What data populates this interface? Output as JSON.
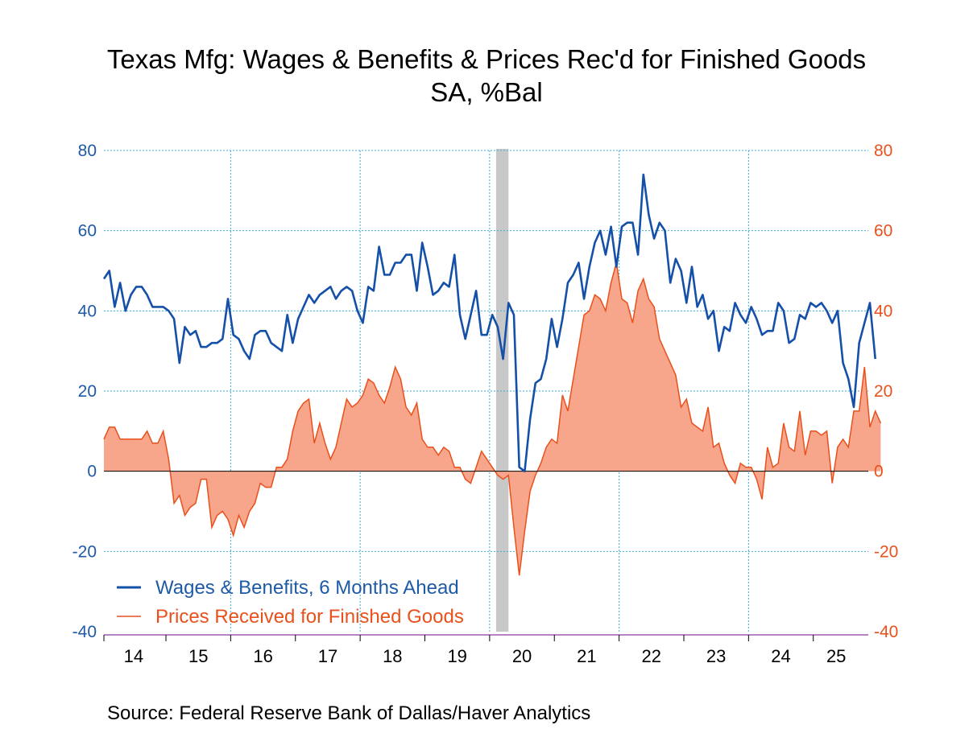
{
  "chart_data": {
    "type": "line",
    "title": "Texas Mfg: Wages & Benefits & Prices Rec'd for Finished Goods",
    "subtitle": "SA, %Bal",
    "source": "Source:  Federal Reserve Bank of Dallas/Haver Analytics",
    "ylim": [
      -40,
      80
    ],
    "y_ticks": [
      "80",
      "60",
      "40",
      "20",
      "0",
      "-20",
      "-40"
    ],
    "y_tick_values": [
      80,
      60,
      40,
      20,
      0,
      -20,
      -40
    ],
    "x_labels": [
      "14",
      "15",
      "16",
      "17",
      "18",
      "19",
      "20",
      "21",
      "22",
      "23",
      "24",
      "25"
    ],
    "x_start": "2014-01",
    "x_end": "2025-09",
    "recession": {
      "start": "2020-02",
      "end": "2020-04"
    },
    "grid": true,
    "legend": "bottom-left",
    "colors": {
      "axis_left": "#1f5aa6",
      "axis_right": "#e8511c",
      "wages": "#1550a8",
      "prices_line": "#e8511c",
      "prices_fill": "#f7a58b",
      "grid": "#3aaed8",
      "recession": "#c8c8c8",
      "axis_base": "#8b3a9e"
    },
    "series": [
      {
        "name": "Wages & Benefits, 6 Months Ahead",
        "style": "line",
        "values": [
          48,
          50,
          41,
          47,
          40,
          44,
          46,
          46,
          44,
          41,
          41,
          41,
          40,
          38,
          27,
          36,
          34,
          35,
          31,
          31,
          32,
          32,
          33,
          43,
          34,
          33,
          30,
          28,
          34,
          35,
          35,
          32,
          31,
          30,
          39,
          32,
          38,
          41,
          44,
          42,
          44,
          45,
          46,
          43,
          45,
          46,
          45,
          40,
          37,
          46,
          45,
          56,
          49,
          49,
          52,
          52,
          54,
          54,
          45,
          57,
          51,
          44,
          45,
          47,
          46,
          54,
          39,
          33,
          39,
          45,
          34,
          34,
          39,
          36,
          28,
          42,
          39,
          1,
          0,
          13,
          22,
          23,
          28,
          38,
          31,
          38,
          47,
          49,
          52,
          43,
          51,
          57,
          60,
          54,
          61,
          51,
          61,
          62,
          62,
          54,
          74,
          64,
          58,
          62,
          60,
          47,
          53,
          50,
          42,
          51,
          41,
          44,
          38,
          40,
          30,
          36,
          35,
          42,
          39,
          37,
          41,
          38,
          34,
          35,
          35,
          42,
          40,
          32,
          33,
          39,
          38,
          42,
          41,
          42,
          40,
          37,
          40,
          27,
          23,
          16,
          32,
          37,
          42,
          28
        ]
      },
      {
        "name": "Prices Received for Finished Goods",
        "style": "area",
        "values": [
          8,
          11,
          11,
          8,
          8,
          8,
          8,
          8,
          10,
          7,
          7,
          10,
          3,
          -8,
          -6,
          -11,
          -9,
          -8,
          -2,
          -2,
          -14,
          -11,
          -10,
          -12,
          -16,
          -11,
          -14,
          -10,
          -8,
          -3,
          -4,
          -4,
          1,
          1,
          3,
          10,
          15,
          17,
          18,
          7,
          12,
          7,
          3,
          6,
          12,
          18,
          16,
          17,
          19,
          23,
          22,
          19,
          17,
          21,
          26,
          23,
          16,
          14,
          17,
          8,
          6,
          6,
          4,
          6,
          5,
          1,
          1,
          -2,
          -3,
          1,
          5,
          3,
          1,
          -1,
          -2,
          -1,
          -14,
          -26,
          -15,
          -5,
          -1,
          2,
          6,
          8,
          7,
          19,
          15,
          23,
          31,
          39,
          40,
          44,
          43,
          40,
          47,
          52,
          43,
          42,
          37,
          45,
          48,
          43,
          41,
          33,
          30,
          27,
          24,
          16,
          18,
          12,
          11,
          10,
          16,
          6,
          7,
          2,
          -1,
          -3,
          2,
          1,
          1,
          -2,
          -7,
          6,
          1,
          2,
          12,
          6,
          5,
          15,
          4,
          10,
          10,
          9,
          10,
          -3,
          6,
          8,
          6,
          15,
          15,
          26,
          11,
          15,
          12
        ]
      }
    ]
  },
  "legend": {
    "wages_label": "Wages & Benefits, 6 Months Ahead",
    "prices_label": "Prices Received for Finished Goods"
  }
}
